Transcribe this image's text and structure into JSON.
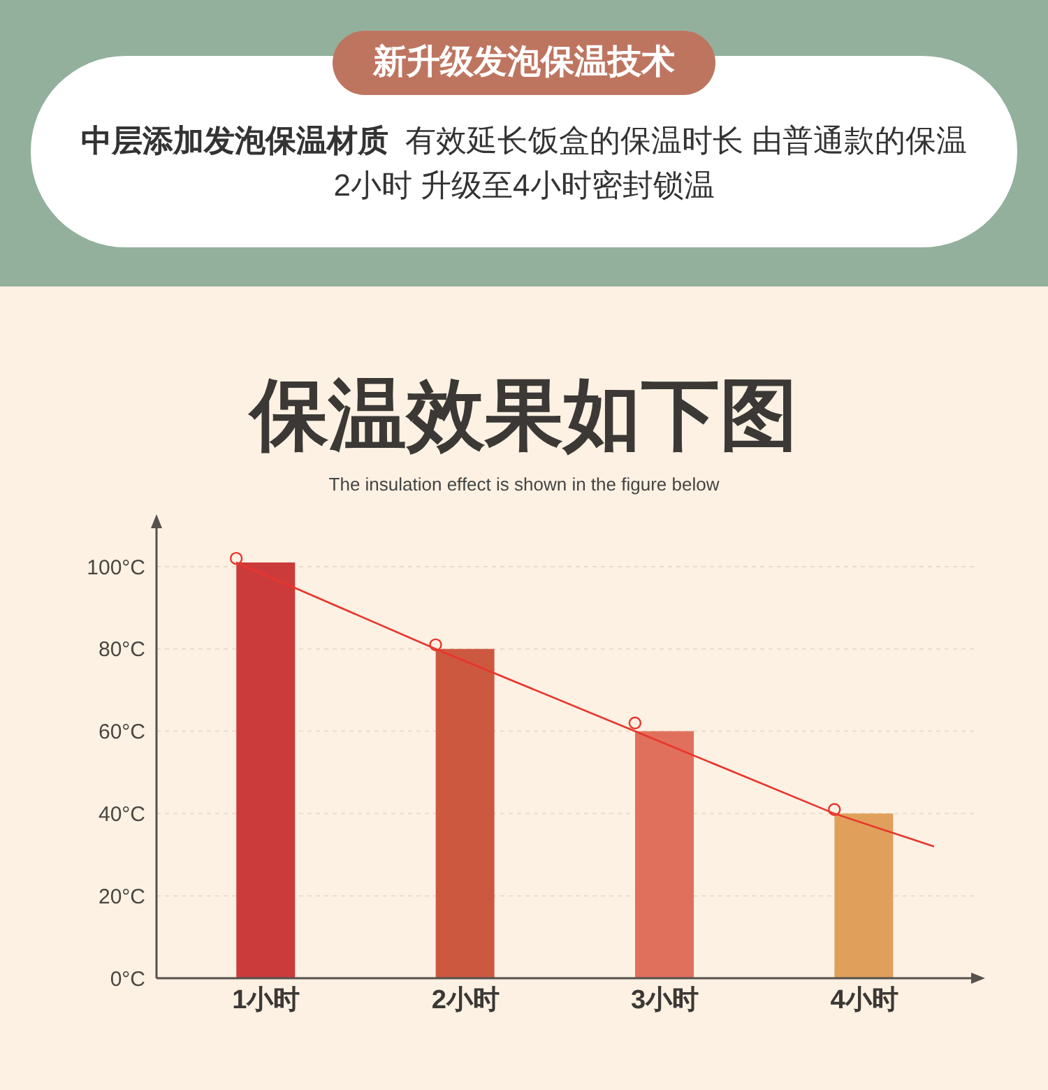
{
  "chart_data": {
    "type": "bar",
    "title": "保温效果如下图",
    "subtitle": "The insulation effect is shown in the figure below",
    "annotations": [
      "新升级发泡保温技术",
      "中层添加发泡保温材质",
      "有效延长饭盒的保温时长 由普通款的保温",
      "2小时 升级至4小时密封锁温"
    ],
    "xlim": [
      0.45,
      4.55
    ],
    "xticks": [
      {
        "value": 1,
        "label": "1小时"
      },
      {
        "value": 2,
        "label": "2小时"
      },
      {
        "value": 3,
        "label": "3小时"
      },
      {
        "value": 4,
        "label": "4小时"
      }
    ],
    "ylim": [
      0,
      110
    ],
    "yticks": [
      {
        "value": 0,
        "label": "0°C"
      },
      {
        "value": 20,
        "label": "20°C"
      },
      {
        "value": 40,
        "label": "40°C"
      },
      {
        "value": 60,
        "label": "60°C"
      },
      {
        "value": 80,
        "label": "80°C"
      },
      {
        "value": 100,
        "label": "100°C"
      }
    ],
    "grid": "y",
    "series": [
      {
        "x": [
          1,
          2,
          3,
          4
        ],
        "values": [
          101,
          80,
          60,
          40
        ],
        "colors": [
          "#cc3b3b",
          "#cd5840",
          "#e0705c",
          "#e0a05c"
        ]
      },
      {
        "type": "line",
        "x": [
          0.85,
          1.85,
          2.85,
          3.85,
          4.35
        ],
        "values": [
          101,
          80,
          60,
          40,
          32
        ],
        "color": "#e8352c"
      },
      {
        "type": "scatter",
        "x": [
          0.85,
          1.85,
          2.85,
          3.85
        ],
        "values": [
          102,
          81,
          62,
          41
        ],
        "color": "#e8352c",
        "marker": "circle"
      }
    ]
  }
}
